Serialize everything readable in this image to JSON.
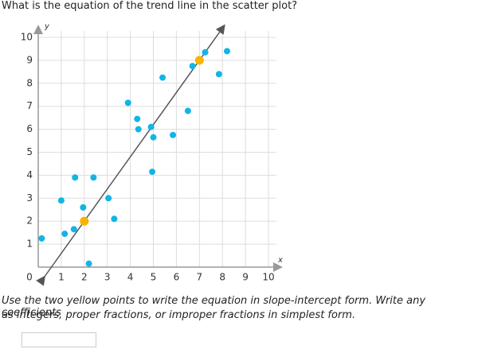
{
  "question": "What is the equation of the trend line in the scatter plot?",
  "instructions": [
    "Use the two yellow points to write the equation in slope-intercept form. Write any coefficients",
    "as integers, proper fractions, or improper fractions in simplest form."
  ],
  "chart_data": {
    "type": "scatter",
    "x_label": "x",
    "y_label": "y",
    "xlim": [
      0,
      10
    ],
    "ylim": [
      0,
      10
    ],
    "xticks": [
      0,
      1,
      2,
      3,
      4,
      5,
      6,
      7,
      8,
      9,
      10
    ],
    "yticks": [
      1,
      2,
      3,
      4,
      5,
      6,
      7,
      8,
      9,
      10
    ],
    "grid": true,
    "series": [
      {
        "color": "#11b5e6",
        "x": [
          0.15,
          1.0,
          1.15,
          1.55,
          1.6,
          1.95,
          2.2,
          2.4,
          3.05,
          3.3,
          3.9,
          4.3,
          4.35,
          4.9,
          4.95,
          5.0,
          5.4,
          5.85,
          6.5,
          6.7,
          7.25,
          7.85,
          8.2
        ],
        "values": [
          1.25,
          2.9,
          1.45,
          1.65,
          3.9,
          2.6,
          0.15,
          3.9,
          3.0,
          2.1,
          7.15,
          6.45,
          6.0,
          6.1,
          4.15,
          5.65,
          8.25,
          5.75,
          6.8,
          8.75,
          9.35,
          8.4,
          9.4
        ]
      },
      {
        "color": "#f5b400",
        "x": [
          2,
          7
        ],
        "values": [
          2,
          9
        ]
      }
    ],
    "trend_line_color": "#555555"
  }
}
